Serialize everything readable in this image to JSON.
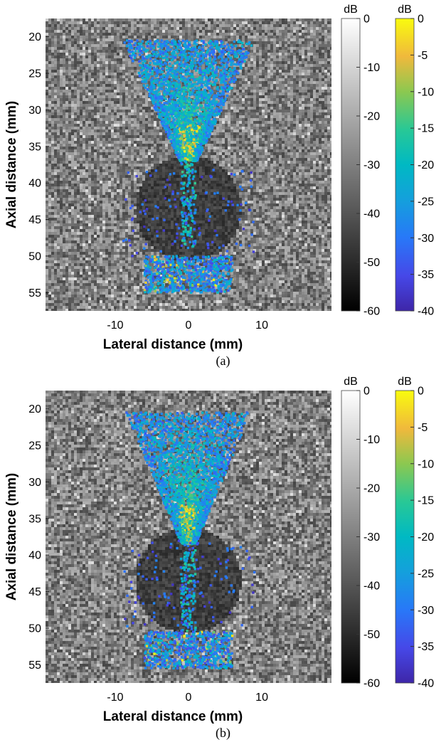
{
  "chart_data": [
    {
      "type": "heatmap",
      "caption": "(a)",
      "xlabel": "Lateral distance (mm)",
      "ylabel": "Axial distance (mm)",
      "xlim": [
        -19.5,
        19.5
      ],
      "ylim": [
        57.5,
        17.5
      ],
      "x_ticks": [
        -10,
        0,
        10
      ],
      "y_ticks": [
        20,
        25,
        30,
        35,
        40,
        45,
        50,
        55
      ],
      "background_colorbar": {
        "unit": "dB",
        "ticks": [
          0,
          -10,
          -20,
          -30,
          -40,
          -50,
          -60
        ],
        "range": [
          -60,
          0
        ],
        "colormap": "gray"
      },
      "overlay_colorbar": {
        "unit": "dB",
        "ticks": [
          0,
          -5,
          -10,
          -15,
          -20,
          -25,
          -30,
          -35,
          -40
        ],
        "range": [
          -40,
          0
        ],
        "colormap": "parula"
      },
      "cyst": {
        "center_x": 0,
        "center_z": 43.5,
        "radius": 7.2
      },
      "overlay_regions": {
        "funnel_top_z": 20.5,
        "funnel_top_halfwidth": 9,
        "funnel_bottom_z": 37,
        "funnel_bottom_halfwidth": 1.2,
        "band_z": [
          50,
          55
        ]
      }
    },
    {
      "type": "heatmap",
      "caption": "(b)",
      "xlabel": "Lateral distance (mm)",
      "ylabel": "Axial distance (mm)",
      "xlim": [
        -19.5,
        19.5
      ],
      "ylim": [
        57.5,
        17.5
      ],
      "x_ticks": [
        -10,
        0,
        10
      ],
      "y_ticks": [
        20,
        25,
        30,
        35,
        40,
        45,
        50,
        55
      ],
      "background_colorbar": {
        "unit": "dB",
        "ticks": [
          0,
          -10,
          -20,
          -30,
          -40,
          -50,
          -60
        ],
        "range": [
          -60,
          0
        ],
        "colormap": "gray"
      },
      "overlay_colorbar": {
        "unit": "dB",
        "ticks": [
          0,
          -5,
          -10,
          -15,
          -20,
          -25,
          -30,
          -35,
          -40
        ],
        "range": [
          -40,
          0
        ],
        "colormap": "parula"
      },
      "cyst": {
        "center_x": 0,
        "center_z": 43.5,
        "radius": 7.2
      },
      "overlay_regions": {
        "funnel_top_z": 20.5,
        "funnel_top_halfwidth": 8.5,
        "funnel_bottom_z": 38.5,
        "funnel_bottom_halfwidth": 1.0,
        "band_z": [
          50.5,
          55.5
        ]
      }
    }
  ]
}
